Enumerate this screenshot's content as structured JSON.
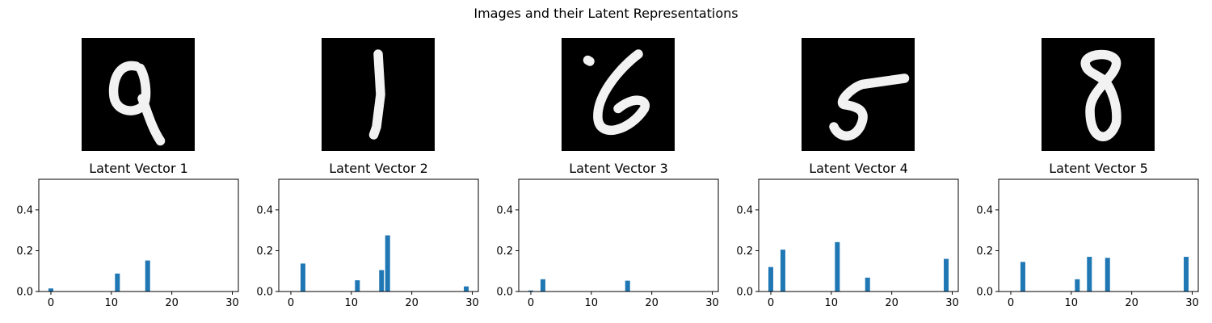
{
  "figure": {
    "title": "Images and their Latent Representations"
  },
  "digits": [
    "9",
    "1",
    "6",
    "5",
    "8"
  ],
  "colors": {
    "bar": "#1f77b4",
    "image_bg": "#000000",
    "stroke": "#f2f2f2"
  },
  "chart_data": [
    {
      "type": "bar",
      "title": "Latent Vector 1",
      "x": [
        0,
        11,
        16
      ],
      "values": [
        0.015,
        0.088,
        0.152
      ],
      "xlim": [
        -2,
        31
      ],
      "ylim": [
        0,
        0.55
      ],
      "xticks": [
        "0",
        "10",
        "20",
        "30"
      ],
      "yticks": [
        "0.0",
        "0.2",
        "0.4"
      ],
      "grid": false
    },
    {
      "type": "bar",
      "title": "Latent Vector 2",
      "x": [
        2,
        11,
        15,
        16,
        29
      ],
      "values": [
        0.137,
        0.055,
        0.105,
        0.275,
        0.025
      ],
      "xlim": [
        -2,
        31
      ],
      "ylim": [
        0,
        0.55
      ],
      "xticks": [
        "0",
        "10",
        "20",
        "30"
      ],
      "yticks": [
        "0.0",
        "0.2",
        "0.4"
      ],
      "grid": false
    },
    {
      "type": "bar",
      "title": "Latent Vector 3",
      "x": [
        0,
        2,
        16
      ],
      "values": [
        0.005,
        0.06,
        0.053
      ],
      "xlim": [
        -2,
        31
      ],
      "ylim": [
        0,
        0.55
      ],
      "xticks": [
        "0",
        "10",
        "20",
        "30"
      ],
      "yticks": [
        "0.0",
        "0.2",
        "0.4"
      ],
      "grid": false
    },
    {
      "type": "bar",
      "title": "Latent Vector 4",
      "x": [
        0,
        2,
        11,
        16,
        29
      ],
      "values": [
        0.12,
        0.205,
        0.242,
        0.068,
        0.16
      ],
      "xlim": [
        -2,
        31
      ],
      "ylim": [
        0,
        0.55
      ],
      "xticks": [
        "0",
        "10",
        "20",
        "30"
      ],
      "yticks": [
        "0.0",
        "0.2",
        "0.4"
      ],
      "grid": false
    },
    {
      "type": "bar",
      "title": "Latent Vector 5",
      "x": [
        2,
        11,
        13,
        16,
        29
      ],
      "values": [
        0.145,
        0.06,
        0.17,
        0.165,
        0.17
      ],
      "xlim": [
        -2,
        31
      ],
      "ylim": [
        0,
        0.55
      ],
      "xticks": [
        "0",
        "10",
        "20",
        "30"
      ],
      "yticks": [
        "0.0",
        "0.2",
        "0.4"
      ],
      "grid": false
    }
  ]
}
